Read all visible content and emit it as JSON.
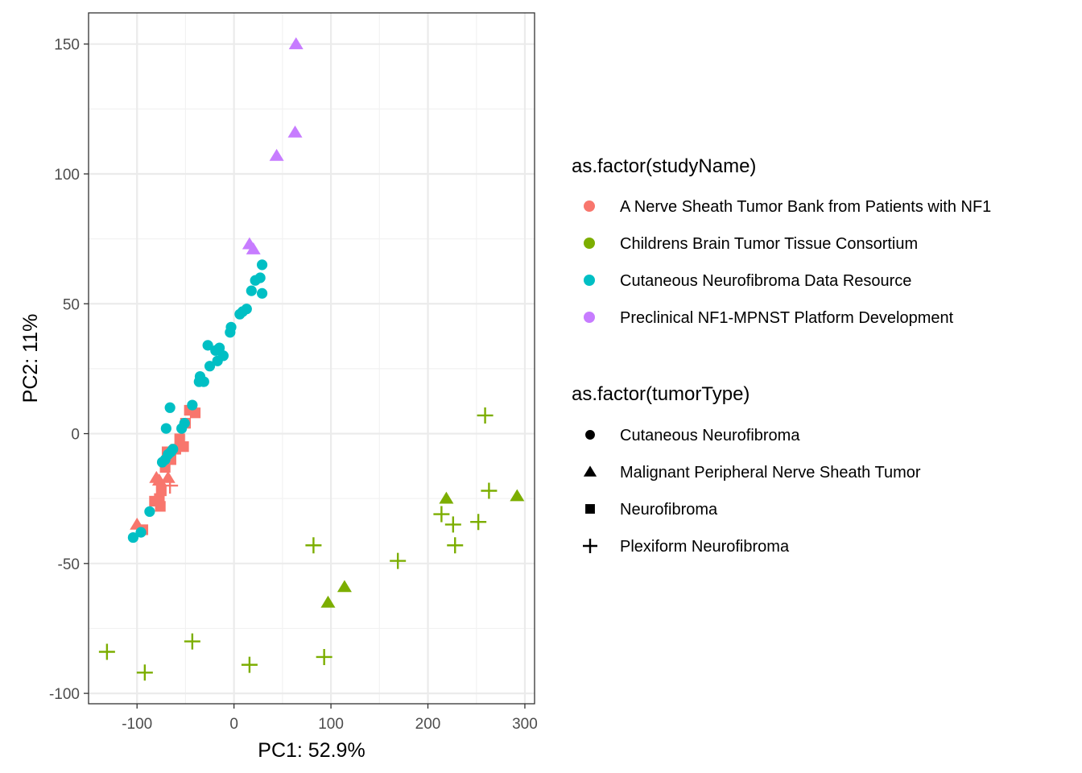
{
  "chart_data": {
    "type": "scatter",
    "xlabel": "PC1: 52.9%",
    "ylabel": "PC2: 11%",
    "xlim": [
      -150,
      310
    ],
    "ylim": [
      -104,
      162
    ],
    "x_ticks": [
      -100,
      0,
      100,
      200,
      300
    ],
    "y_ticks": [
      -100,
      -50,
      0,
      50,
      100,
      150
    ],
    "grid": true,
    "legend_position": "right",
    "color_legend": {
      "title": "as.factor(studyName)",
      "entries": [
        {
          "name": "A Nerve Sheath Tumor Bank from Patients with NF1",
          "color": "#F8766D"
        },
        {
          "name": "Childrens Brain Tumor Tissue Consortium",
          "color": "#7CAE00"
        },
        {
          "name": "Cutaneous Neurofibroma Data Resource",
          "color": "#00BFC4"
        },
        {
          "name": "Preclinical NF1-MPNST Platform Development",
          "color": "#C77CFF"
        }
      ]
    },
    "shape_legend": {
      "title": "as.factor(tumorType)",
      "entries": [
        {
          "name": "Cutaneous Neurofibroma",
          "shape": "circle"
        },
        {
          "name": "Malignant Peripheral Nerve Sheath Tumor",
          "shape": "triangle"
        },
        {
          "name": "Neurofibroma",
          "shape": "square"
        },
        {
          "name": "Plexiform Neurofibroma",
          "shape": "plus"
        }
      ]
    },
    "series": [
      {
        "name": "A Nerve Sheath Tumor Bank from Patients with NF1",
        "points": [
          {
            "x": -100,
            "y": -35,
            "shape": "triangle"
          },
          {
            "x": -80,
            "y": -17,
            "shape": "triangle"
          },
          {
            "x": -77,
            "y": -18,
            "shape": "triangle"
          },
          {
            "x": -68,
            "y": -17,
            "shape": "triangle"
          },
          {
            "x": -66,
            "y": -20,
            "shape": "plus"
          },
          {
            "x": -94,
            "y": -37,
            "shape": "square"
          },
          {
            "x": -82,
            "y": -26,
            "shape": "square"
          },
          {
            "x": -77,
            "y": -25,
            "shape": "square"
          },
          {
            "x": -76,
            "y": -28,
            "shape": "square"
          },
          {
            "x": -75,
            "y": -22,
            "shape": "square"
          },
          {
            "x": -71,
            "y": -13,
            "shape": "square"
          },
          {
            "x": -69,
            "y": -7,
            "shape": "square"
          },
          {
            "x": -65,
            "y": -10,
            "shape": "square"
          },
          {
            "x": -60,
            "y": -6,
            "shape": "square"
          },
          {
            "x": -56,
            "y": -2,
            "shape": "square"
          },
          {
            "x": -52,
            "y": -5,
            "shape": "square"
          },
          {
            "x": -50,
            "y": 4,
            "shape": "square"
          },
          {
            "x": -46,
            "y": 9,
            "shape": "square"
          },
          {
            "x": -40,
            "y": 8,
            "shape": "square"
          }
        ]
      },
      {
        "name": "Childrens Brain Tumor Tissue Consortium",
        "points": [
          {
            "x": 219,
            "y": -25,
            "shape": "triangle"
          },
          {
            "x": 292,
            "y": -24,
            "shape": "triangle"
          },
          {
            "x": 114,
            "y": -59,
            "shape": "triangle"
          },
          {
            "x": 97,
            "y": -65,
            "shape": "triangle"
          },
          {
            "x": 259,
            "y": 7,
            "shape": "plus"
          },
          {
            "x": 263,
            "y": -22,
            "shape": "plus"
          },
          {
            "x": 214,
            "y": -31,
            "shape": "plus"
          },
          {
            "x": 226,
            "y": -35,
            "shape": "plus"
          },
          {
            "x": 252,
            "y": -34,
            "shape": "plus"
          },
          {
            "x": 228,
            "y": -43,
            "shape": "plus"
          },
          {
            "x": 82,
            "y": -43,
            "shape": "plus"
          },
          {
            "x": 169,
            "y": -49,
            "shape": "plus"
          },
          {
            "x": -131,
            "y": -84,
            "shape": "plus"
          },
          {
            "x": -92,
            "y": -92,
            "shape": "plus"
          },
          {
            "x": -43,
            "y": -80,
            "shape": "plus"
          },
          {
            "x": 16,
            "y": -89,
            "shape": "plus"
          },
          {
            "x": 93,
            "y": -86,
            "shape": "plus"
          }
        ]
      },
      {
        "name": "Cutaneous Neurofibroma Data Resource",
        "points": [
          {
            "x": -104,
            "y": -40,
            "shape": "circle"
          },
          {
            "x": -96,
            "y": -38,
            "shape": "circle"
          },
          {
            "x": -87,
            "y": -30,
            "shape": "circle"
          },
          {
            "x": -74,
            "y": -11,
            "shape": "circle"
          },
          {
            "x": -71,
            "y": -10,
            "shape": "circle"
          },
          {
            "x": -68,
            "y": -8,
            "shape": "circle"
          },
          {
            "x": -65,
            "y": -7,
            "shape": "circle"
          },
          {
            "x": -63,
            "y": -6,
            "shape": "circle"
          },
          {
            "x": -70,
            "y": 2,
            "shape": "circle"
          },
          {
            "x": -66,
            "y": 10,
            "shape": "circle"
          },
          {
            "x": -54,
            "y": 2,
            "shape": "circle"
          },
          {
            "x": -51,
            "y": 4,
            "shape": "circle"
          },
          {
            "x": -43,
            "y": 11,
            "shape": "circle"
          },
          {
            "x": -36,
            "y": 20,
            "shape": "circle"
          },
          {
            "x": -35,
            "y": 22,
            "shape": "circle"
          },
          {
            "x": -31,
            "y": 20,
            "shape": "circle"
          },
          {
            "x": -25,
            "y": 26,
            "shape": "circle"
          },
          {
            "x": -27,
            "y": 34,
            "shape": "circle"
          },
          {
            "x": -17,
            "y": 28,
            "shape": "circle"
          },
          {
            "x": -19,
            "y": 32,
            "shape": "circle"
          },
          {
            "x": -15,
            "y": 33,
            "shape": "circle"
          },
          {
            "x": -11,
            "y": 30,
            "shape": "circle"
          },
          {
            "x": -4,
            "y": 39,
            "shape": "circle"
          },
          {
            "x": -3,
            "y": 41,
            "shape": "circle"
          },
          {
            "x": 6,
            "y": 46,
            "shape": "circle"
          },
          {
            "x": 9,
            "y": 47,
            "shape": "circle"
          },
          {
            "x": 13,
            "y": 48,
            "shape": "circle"
          },
          {
            "x": 18,
            "y": 55,
            "shape": "circle"
          },
          {
            "x": 22,
            "y": 59,
            "shape": "circle"
          },
          {
            "x": 27,
            "y": 60,
            "shape": "circle"
          },
          {
            "x": 29,
            "y": 54,
            "shape": "circle"
          },
          {
            "x": 29,
            "y": 65,
            "shape": "circle"
          }
        ]
      },
      {
        "name": "Preclinical NF1-MPNST Platform Development",
        "points": [
          {
            "x": 64,
            "y": 150,
            "shape": "triangle"
          },
          {
            "x": 63,
            "y": 116,
            "shape": "triangle"
          },
          {
            "x": 44,
            "y": 107,
            "shape": "triangle"
          },
          {
            "x": 16,
            "y": 73,
            "shape": "triangle"
          },
          {
            "x": 20,
            "y": 71,
            "shape": "triangle"
          }
        ]
      }
    ]
  }
}
